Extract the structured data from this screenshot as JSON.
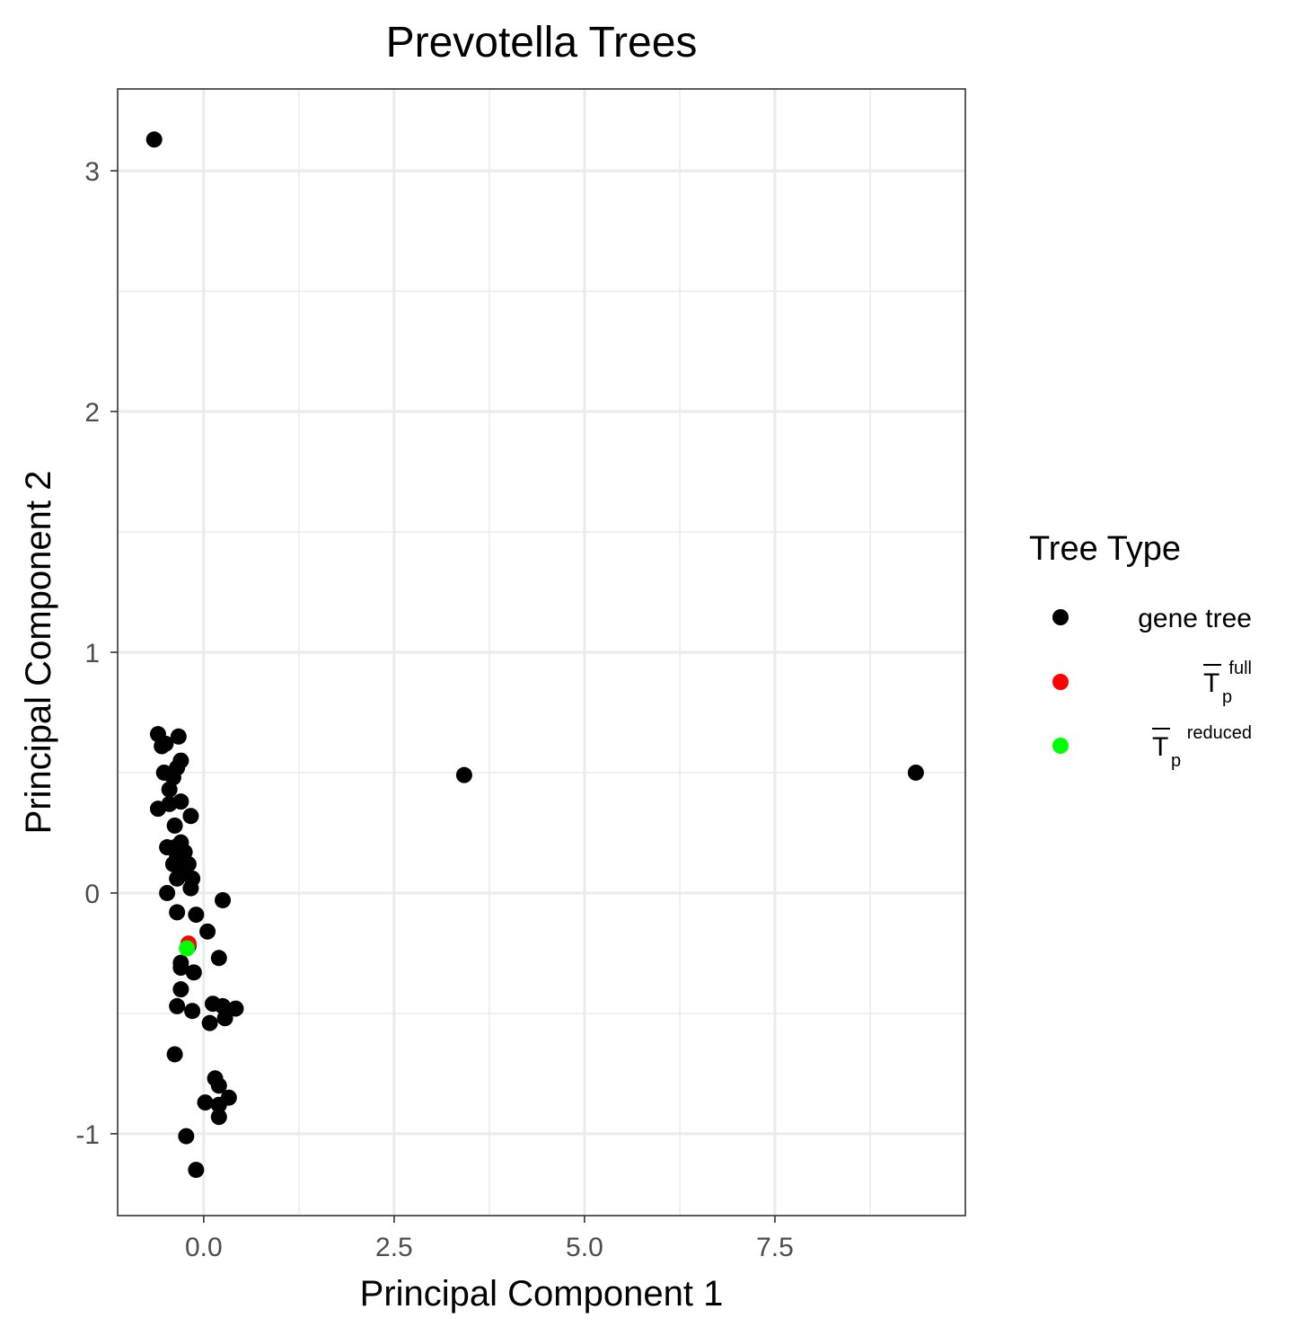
{
  "chart_data": {
    "type": "scatter",
    "title": "Prevotella Trees",
    "xlabel": "Principal Component 1",
    "ylabel": "Principal Component 2",
    "xlim": [
      -1.13,
      10.0
    ],
    "ylim": [
      -1.34,
      3.34
    ],
    "xticks": [
      0.0,
      2.5,
      5.0,
      7.5
    ],
    "xtick_labels": [
      "0.0",
      "2.5",
      "5.0",
      "7.5"
    ],
    "yticks": [
      -1,
      0,
      1,
      2,
      3
    ],
    "ytick_labels": [
      "-1",
      "0",
      "1",
      "2",
      "3"
    ],
    "grid": true,
    "legend": {
      "title": "Tree Type",
      "placement": "right",
      "entries": [
        {
          "label": "gene tree",
          "color": "#000000"
        },
        {
          "label": "T",
          "sub": "p",
          "sup": "full",
          "overline": true,
          "color": "#ff0000"
        },
        {
          "label": "T",
          "sub": "p",
          "sup": "reduced",
          "overline": true,
          "color": "#00ff00"
        }
      ]
    },
    "series": [
      {
        "color": "#000000",
        "points": [
          [
            -0.65,
            3.13
          ],
          [
            3.42,
            0.49
          ],
          [
            9.35,
            0.5
          ],
          [
            -0.6,
            0.66
          ],
          [
            -0.33,
            0.65
          ],
          [
            -0.55,
            0.61
          ],
          [
            -0.5,
            0.62
          ],
          [
            -0.3,
            0.55
          ],
          [
            -0.35,
            0.52
          ],
          [
            -0.52,
            0.5
          ],
          [
            -0.4,
            0.48
          ],
          [
            -0.45,
            0.43
          ],
          [
            -0.3,
            0.38
          ],
          [
            -0.45,
            0.37
          ],
          [
            -0.6,
            0.35
          ],
          [
            -0.17,
            0.32
          ],
          [
            -0.38,
            0.28
          ],
          [
            -0.3,
            0.21
          ],
          [
            -0.48,
            0.19
          ],
          [
            -0.38,
            0.19
          ],
          [
            -0.25,
            0.17
          ],
          [
            -0.35,
            0.15
          ],
          [
            -0.2,
            0.12
          ],
          [
            -0.4,
            0.12
          ],
          [
            -0.3,
            0.1
          ],
          [
            -0.15,
            0.06
          ],
          [
            -0.35,
            0.06
          ],
          [
            -0.17,
            0.02
          ],
          [
            -0.48,
            0.0
          ],
          [
            0.25,
            -0.03
          ],
          [
            -0.35,
            -0.08
          ],
          [
            -0.1,
            -0.09
          ],
          [
            0.05,
            -0.16
          ],
          [
            -0.2,
            -0.22
          ],
          [
            0.2,
            -0.27
          ],
          [
            -0.3,
            -0.29
          ],
          [
            -0.3,
            -0.31
          ],
          [
            -0.13,
            -0.33
          ],
          [
            -0.3,
            -0.4
          ],
          [
            -0.35,
            -0.47
          ],
          [
            0.12,
            -0.46
          ],
          [
            0.25,
            -0.47
          ],
          [
            0.42,
            -0.48
          ],
          [
            -0.15,
            -0.49
          ],
          [
            0.28,
            -0.52
          ],
          [
            0.08,
            -0.54
          ],
          [
            -0.38,
            -0.67
          ],
          [
            0.15,
            -0.77
          ],
          [
            0.2,
            -0.8
          ],
          [
            0.33,
            -0.85
          ],
          [
            0.02,
            -0.87
          ],
          [
            0.2,
            -0.88
          ],
          [
            0.2,
            -0.93
          ],
          [
            -0.23,
            -1.01
          ],
          [
            -0.1,
            -1.15
          ]
        ]
      },
      {
        "color": "#ff0000",
        "points": [
          [
            -0.2,
            -0.21
          ]
        ]
      },
      {
        "color": "#00ff00",
        "points": [
          [
            -0.22,
            -0.23
          ]
        ]
      }
    ]
  }
}
